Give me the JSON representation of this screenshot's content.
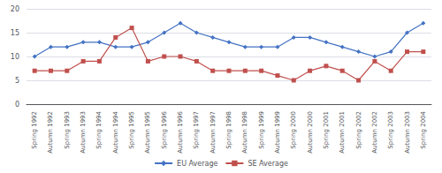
{
  "chart_data": {
    "type": "line",
    "categories": [
      "Spring 1992",
      "Autumn 1992",
      "Spring 1993",
      "Autumn 1993",
      "Spring 1994",
      "Autumn 1994",
      "Spring 1995",
      "Autumn 1995",
      "Spring 1996",
      "Autumn 1996",
      "Spring 1997",
      "Autumn 1997",
      "Spring 1998",
      "Autumn 1998",
      "Spring 1999",
      "Autumn 1999",
      "Spring 2000",
      "Autumn 2000",
      "Spring 2001",
      "Autumn 2001",
      "Spring 2002",
      "Autumn 2002",
      "Spring 2003",
      "Autumn 2003",
      "Spring 2004"
    ],
    "series": [
      {
        "name": "EU Average",
        "color": "#4472C4",
        "marker": "diamond",
        "values": [
          10,
          12,
          12,
          13,
          13,
          12,
          12,
          13,
          15,
          17,
          15,
          14,
          13,
          12,
          12,
          12,
          14,
          14,
          13,
          12,
          11,
          10,
          11,
          15,
          17
        ]
      },
      {
        "name": "SE Average",
        "color": "#C0504D",
        "marker": "square",
        "values": [
          7,
          7,
          7,
          9,
          9,
          14,
          16,
          9,
          10,
          10,
          9,
          7,
          7,
          7,
          7,
          6,
          5,
          7,
          8,
          7,
          5,
          9,
          7,
          11,
          11
        ]
      }
    ],
    "ylim": [
      0,
      20
    ],
    "yticks": [
      0,
      5,
      10,
      15,
      20
    ],
    "grid": true,
    "legend": "bottom"
  }
}
